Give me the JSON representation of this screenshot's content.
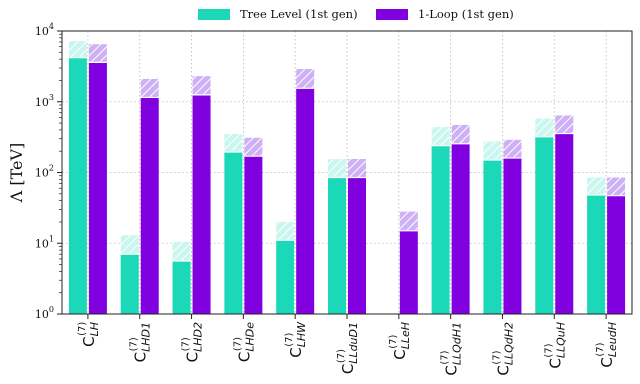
{
  "chart_data": {
    "type": "bar",
    "yscale": "log",
    "ylim": [
      1,
      10000
    ],
    "ylabel": "Λ [TeV]",
    "y_ticks": [
      {
        "base": "10",
        "exp": "0"
      },
      {
        "base": "10",
        "exp": "1"
      },
      {
        "base": "10",
        "exp": "2"
      },
      {
        "base": "10",
        "exp": "3"
      },
      {
        "base": "10",
        "exp": "4"
      }
    ],
    "grid": true,
    "legend_position": "top-center",
    "categories": [
      {
        "main": "C",
        "sup": "(7)",
        "sub": "LH"
      },
      {
        "main": "C",
        "sup": "(7)",
        "sub": "LHD1"
      },
      {
        "main": "C",
        "sup": "(7)",
        "sub": "LHD2"
      },
      {
        "main": "C",
        "sup": "(7)",
        "sub": "LHDe"
      },
      {
        "main": "C",
        "sup": "(7)",
        "sub": "LHW"
      },
      {
        "main": "C",
        "sup": "(7)",
        "sub": "LLduD1"
      },
      {
        "main": "C",
        "sup": "(7)",
        "sub": "LLeH"
      },
      {
        "main": "C",
        "sup": "(7)",
        "sub": "LLQdH1"
      },
      {
        "main": "C",
        "sup": "(7)",
        "sub": "LLQdH2"
      },
      {
        "main": "C",
        "sup": "(7)",
        "sub": "LLQuH"
      },
      {
        "main": "C",
        "sup": "(7)",
        "sub": "LeudH"
      }
    ],
    "series": [
      {
        "name": "Tree Level (1st gen)",
        "color": "#1ad8b8",
        "hatch_color": "#a8f0e4",
        "values": [
          4200,
          7,
          5.6,
          195,
          11,
          85,
          null,
          240,
          150,
          320,
          48
        ],
        "upper_values": [
          7200,
          13,
          10.5,
          350,
          20,
          155,
          null,
          440,
          275,
          580,
          85
        ]
      },
      {
        "name": "1-Loop (1st gen)",
        "color": "#8000e0",
        "hatch_color": "#c8a8f4",
        "values": [
          3600,
          1150,
          1250,
          170,
          1550,
          85,
          15,
          255,
          160,
          355,
          47
        ],
        "upper_values": [
          6500,
          2100,
          2300,
          310,
          2900,
          155,
          28,
          470,
          290,
          640,
          85
        ]
      }
    ]
  }
}
